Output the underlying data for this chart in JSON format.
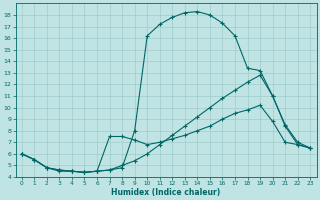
{
  "background_color": "#c0e4e4",
  "grid_color": "#a0cccc",
  "line_color": "#006666",
  "xlabel": "Humidex (Indice chaleur)",
  "xlim": [
    -0.5,
    23.5
  ],
  "ylim": [
    4,
    19
  ],
  "xticks": [
    0,
    1,
    2,
    3,
    4,
    5,
    6,
    7,
    8,
    9,
    10,
    11,
    12,
    13,
    14,
    15,
    16,
    17,
    18,
    19,
    20,
    21,
    22,
    23
  ],
  "yticks": [
    4,
    5,
    6,
    7,
    8,
    9,
    10,
    11,
    12,
    13,
    14,
    15,
    16,
    17,
    18
  ],
  "line1_x": [
    0,
    1,
    2,
    3,
    4,
    5,
    6,
    7,
    8,
    9,
    10,
    11,
    12,
    13,
    14,
    15,
    16,
    17,
    18,
    19,
    20,
    21,
    22,
    23
  ],
  "line1_y": [
    6.0,
    5.5,
    4.8,
    4.6,
    4.5,
    4.4,
    4.5,
    4.6,
    4.8,
    8.0,
    16.2,
    17.2,
    17.8,
    18.2,
    18.3,
    18.0,
    17.3,
    16.2,
    13.4,
    13.2,
    11.0,
    8.5,
    7.0,
    6.5
  ],
  "line2_x": [
    0,
    1,
    2,
    3,
    4,
    5,
    6,
    7,
    8,
    9,
    10,
    11,
    12,
    13,
    14,
    15,
    16,
    17,
    18,
    19,
    20,
    21,
    22,
    23
  ],
  "line2_y": [
    6.0,
    5.5,
    4.8,
    4.6,
    4.5,
    4.4,
    4.5,
    4.6,
    5.0,
    5.4,
    6.0,
    6.8,
    7.6,
    8.4,
    9.2,
    10.0,
    10.8,
    11.5,
    12.2,
    12.8,
    11.0,
    8.4,
    6.8,
    6.5
  ],
  "line3_x": [
    0,
    1,
    2,
    3,
    4,
    5,
    6,
    7,
    8,
    9,
    10,
    11,
    12,
    13,
    14,
    15,
    16,
    17,
    18,
    19,
    20,
    21,
    22,
    23
  ],
  "line3_y": [
    6.0,
    5.5,
    4.8,
    4.5,
    4.5,
    4.4,
    4.5,
    7.5,
    7.5,
    7.2,
    6.8,
    7.0,
    7.3,
    7.6,
    8.0,
    8.4,
    9.0,
    9.5,
    9.8,
    10.2,
    8.8,
    7.0,
    6.8,
    6.5
  ]
}
